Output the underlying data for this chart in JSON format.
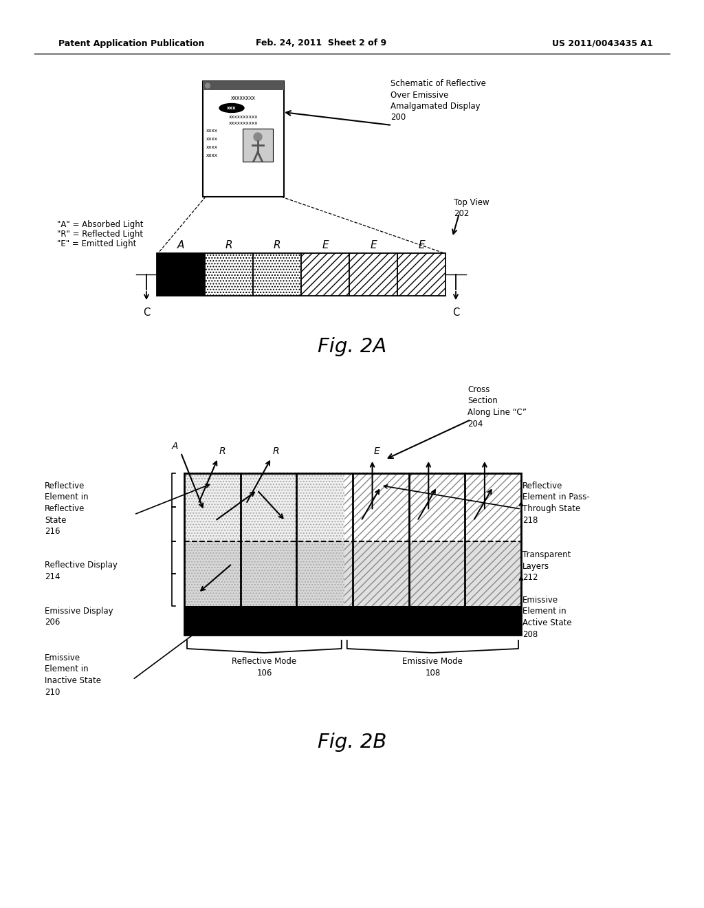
{
  "header_left": "Patent Application Publication",
  "header_center": "Feb. 24, 2011  Sheet 2 of 9",
  "header_right": "US 2011/0043435 A1",
  "fig2a_label": "Fig. 2A",
  "fig2b_label": "Fig. 2B",
  "background_color": "#ffffff"
}
